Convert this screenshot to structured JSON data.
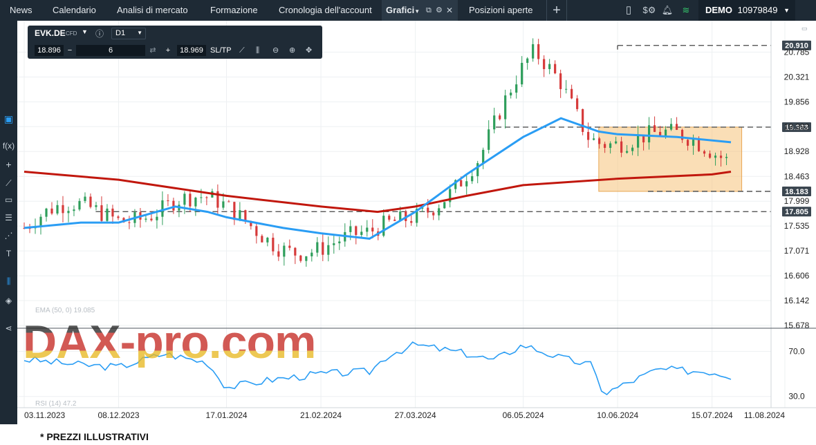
{
  "nav": {
    "tabs": [
      "News",
      "Calendario",
      "Analisi di mercato",
      "Formazione",
      "Cronologia dell'account",
      "Grafici",
      "Posizioni aperte"
    ],
    "add_label": "+",
    "account": {
      "mode": "DEMO",
      "number": "10979849"
    }
  },
  "toolbar": {
    "symbol": "EVK.DE",
    "instrument_type": "CFD",
    "timeframe": "D1",
    "bid": "18.896",
    "quantity": "6",
    "ask": "18.969",
    "sltp": "SL/TP"
  },
  "indicators": {
    "ema_label": "EMA (50, 0) 19.085",
    "rsi_label": "RSI (14) 47.2"
  },
  "watermark": "DAX-pro.com",
  "footer": "* PREZZI ILLUSTRATIVI",
  "colors": {
    "up": "#2e9e5b",
    "down": "#d63a3a",
    "ema50": "#2a9df4",
    "sma200": "#c1170d",
    "range_fill": "#f5c27a",
    "rsi_line": "#2a9df4"
  },
  "chart_data": [
    {
      "type": "line",
      "subtype": "candlestick",
      "x": [
        "03.11.2023",
        "08.12.2023",
        "17.01.2024",
        "21.02.2024",
        "27.03.2024",
        "06.05.2024",
        "10.06.2024",
        "15.07.2024",
        "11.08.2024"
      ],
      "y_ticks": [
        20.785,
        20.321,
        19.856,
        19.392,
        18.928,
        18.463,
        17.999,
        17.535,
        17.071,
        16.606,
        16.142,
        15.678
      ],
      "ylim": [
        15.678,
        21.1
      ],
      "price_levels": [
        20.91,
        19.383,
        18.183,
        17.805
      ],
      "range_box": {
        "from": "03.06.2024",
        "to": "26.07.2024",
        "low": 18.183,
        "high": 19.383
      },
      "series": [
        {
          "values": [
            {
              "x": "03.11.2023",
              "y": 17.5
            },
            {
              "x": "24.11.2023",
              "y": 17.6
            },
            {
              "x": "08.12.2023",
              "y": 17.6
            },
            {
              "x": "29.12.2023",
              "y": 17.9
            },
            {
              "x": "10.01.2024",
              "y": 17.8
            },
            {
              "x": "17.01.2024",
              "y": 17.7
            },
            {
              "x": "07.02.2024",
              "y": 17.5
            },
            {
              "x": "21.02.2024",
              "y": 17.4
            },
            {
              "x": "10.03.2024",
              "y": 17.3
            },
            {
              "x": "27.03.2024",
              "y": 17.8
            },
            {
              "x": "15.04.2024",
              "y": 18.5
            },
            {
              "x": "06.05.2024",
              "y": 19.2
            },
            {
              "x": "20.05.2024",
              "y": 19.55
            },
            {
              "x": "03.06.2024",
              "y": 19.3
            },
            {
              "x": "10.06.2024",
              "y": 19.25
            },
            {
              "x": "02.07.2024",
              "y": 19.2
            },
            {
              "x": "22.07.2024",
              "y": 19.1
            }
          ]
        },
        {
          "values": [
            {
              "x": "03.11.2023",
              "y": 18.55
            },
            {
              "x": "08.12.2023",
              "y": 18.4
            },
            {
              "x": "17.01.2024",
              "y": 18.1
            },
            {
              "x": "21.02.2024",
              "y": 17.9
            },
            {
              "x": "13.03.2024",
              "y": 17.8
            },
            {
              "x": "27.03.2024",
              "y": 17.9
            },
            {
              "x": "15.04.2024",
              "y": 18.1
            },
            {
              "x": "06.05.2024",
              "y": 18.3
            },
            {
              "x": "10.06.2024",
              "y": 18.42
            },
            {
              "x": "15.07.2024",
              "y": 18.5
            },
            {
              "x": "22.07.2024",
              "y": 18.55
            }
          ]
        }
      ]
    },
    {
      "type": "line",
      "x": [
        "03.11.2023",
        "08.12.2023",
        "17.01.2024",
        "21.02.2024",
        "27.03.2024",
        "06.05.2024",
        "10.06.2024",
        "15.07.2024",
        "11.08.2024"
      ],
      "y_ticks": [
        70.0,
        30.0
      ],
      "ylim": [
        20,
        90
      ],
      "series": [
        {
          "values": [
            {
              "x": "03.11.2023",
              "y": 63
            },
            {
              "x": "24.11.2023",
              "y": 58
            },
            {
              "x": "08.12.2023",
              "y": 56
            },
            {
              "x": "25.12.2023",
              "y": 68
            },
            {
              "x": "10.01.2024",
              "y": 60
            },
            {
              "x": "17.01.2024",
              "y": 38
            },
            {
              "x": "03.02.2024",
              "y": 45
            },
            {
              "x": "21.02.2024",
              "y": 50
            },
            {
              "x": "10.03.2024",
              "y": 52
            },
            {
              "x": "17.03.2024",
              "y": 67
            },
            {
              "x": "27.03.2024",
              "y": 76
            },
            {
              "x": "15.04.2024",
              "y": 68
            },
            {
              "x": "25.04.2024",
              "y": 62
            },
            {
              "x": "06.05.2024",
              "y": 76
            },
            {
              "x": "20.05.2024",
              "y": 64
            },
            {
              "x": "31.05.2024",
              "y": 58
            },
            {
              "x": "05.06.2024",
              "y": 32
            },
            {
              "x": "10.06.2024",
              "y": 38
            },
            {
              "x": "25.06.2024",
              "y": 54
            },
            {
              "x": "15.07.2024",
              "y": 52
            },
            {
              "x": "22.07.2024",
              "y": 48
            }
          ]
        }
      ]
    }
  ]
}
